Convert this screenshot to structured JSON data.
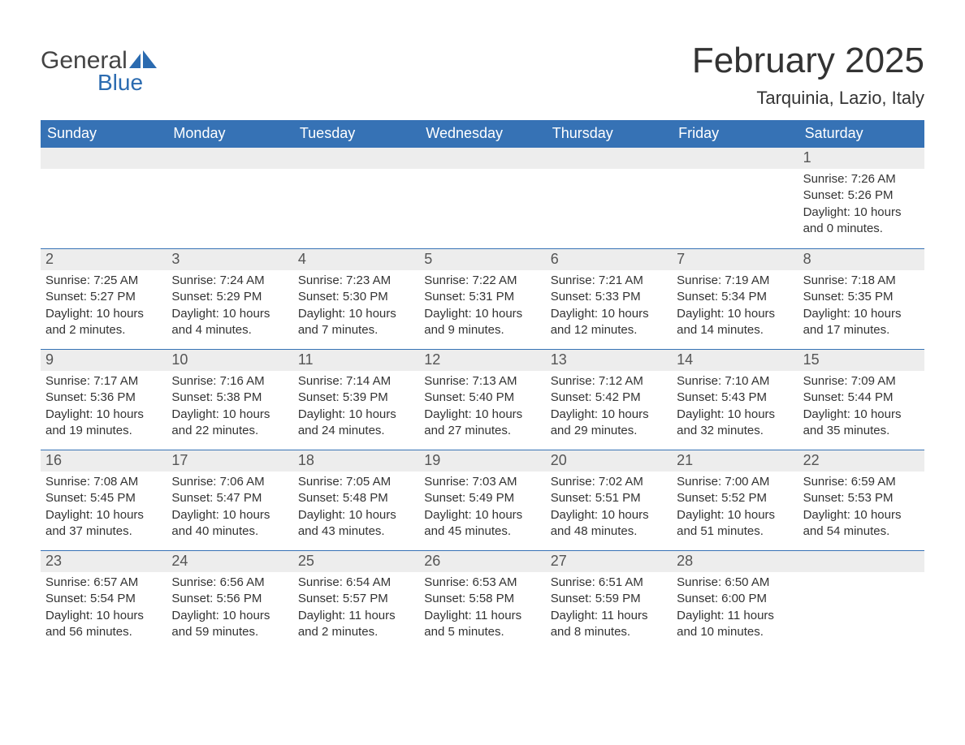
{
  "brand": {
    "word1": "General",
    "word2": "Blue"
  },
  "title": {
    "month": "February 2025",
    "location": "Tarquinia, Lazio, Italy"
  },
  "colors": {
    "header_bg": "#3672b5",
    "header_text": "#ffffff",
    "daynum_bg": "#ededed",
    "rule": "#3672b5",
    "text": "#333333",
    "logo_blue": "#2b6bb0"
  },
  "days_of_week": [
    "Sunday",
    "Monday",
    "Tuesday",
    "Wednesday",
    "Thursday",
    "Friday",
    "Saturday"
  ],
  "weeks": [
    [
      {
        "n": "",
        "sunrise": "",
        "sunset": "",
        "daylight": ""
      },
      {
        "n": "",
        "sunrise": "",
        "sunset": "",
        "daylight": ""
      },
      {
        "n": "",
        "sunrise": "",
        "sunset": "",
        "daylight": ""
      },
      {
        "n": "",
        "sunrise": "",
        "sunset": "",
        "daylight": ""
      },
      {
        "n": "",
        "sunrise": "",
        "sunset": "",
        "daylight": ""
      },
      {
        "n": "",
        "sunrise": "",
        "sunset": "",
        "daylight": ""
      },
      {
        "n": "1",
        "sunrise": "Sunrise: 7:26 AM",
        "sunset": "Sunset: 5:26 PM",
        "daylight": "Daylight: 10 hours and 0 minutes."
      }
    ],
    [
      {
        "n": "2",
        "sunrise": "Sunrise: 7:25 AM",
        "sunset": "Sunset: 5:27 PM",
        "daylight": "Daylight: 10 hours and 2 minutes."
      },
      {
        "n": "3",
        "sunrise": "Sunrise: 7:24 AM",
        "sunset": "Sunset: 5:29 PM",
        "daylight": "Daylight: 10 hours and 4 minutes."
      },
      {
        "n": "4",
        "sunrise": "Sunrise: 7:23 AM",
        "sunset": "Sunset: 5:30 PM",
        "daylight": "Daylight: 10 hours and 7 minutes."
      },
      {
        "n": "5",
        "sunrise": "Sunrise: 7:22 AM",
        "sunset": "Sunset: 5:31 PM",
        "daylight": "Daylight: 10 hours and 9 minutes."
      },
      {
        "n": "6",
        "sunrise": "Sunrise: 7:21 AM",
        "sunset": "Sunset: 5:33 PM",
        "daylight": "Daylight: 10 hours and 12 minutes."
      },
      {
        "n": "7",
        "sunrise": "Sunrise: 7:19 AM",
        "sunset": "Sunset: 5:34 PM",
        "daylight": "Daylight: 10 hours and 14 minutes."
      },
      {
        "n": "8",
        "sunrise": "Sunrise: 7:18 AM",
        "sunset": "Sunset: 5:35 PM",
        "daylight": "Daylight: 10 hours and 17 minutes."
      }
    ],
    [
      {
        "n": "9",
        "sunrise": "Sunrise: 7:17 AM",
        "sunset": "Sunset: 5:36 PM",
        "daylight": "Daylight: 10 hours and 19 minutes."
      },
      {
        "n": "10",
        "sunrise": "Sunrise: 7:16 AM",
        "sunset": "Sunset: 5:38 PM",
        "daylight": "Daylight: 10 hours and 22 minutes."
      },
      {
        "n": "11",
        "sunrise": "Sunrise: 7:14 AM",
        "sunset": "Sunset: 5:39 PM",
        "daylight": "Daylight: 10 hours and 24 minutes."
      },
      {
        "n": "12",
        "sunrise": "Sunrise: 7:13 AM",
        "sunset": "Sunset: 5:40 PM",
        "daylight": "Daylight: 10 hours and 27 minutes."
      },
      {
        "n": "13",
        "sunrise": "Sunrise: 7:12 AM",
        "sunset": "Sunset: 5:42 PM",
        "daylight": "Daylight: 10 hours and 29 minutes."
      },
      {
        "n": "14",
        "sunrise": "Sunrise: 7:10 AM",
        "sunset": "Sunset: 5:43 PM",
        "daylight": "Daylight: 10 hours and 32 minutes."
      },
      {
        "n": "15",
        "sunrise": "Sunrise: 7:09 AM",
        "sunset": "Sunset: 5:44 PM",
        "daylight": "Daylight: 10 hours and 35 minutes."
      }
    ],
    [
      {
        "n": "16",
        "sunrise": "Sunrise: 7:08 AM",
        "sunset": "Sunset: 5:45 PM",
        "daylight": "Daylight: 10 hours and 37 minutes."
      },
      {
        "n": "17",
        "sunrise": "Sunrise: 7:06 AM",
        "sunset": "Sunset: 5:47 PM",
        "daylight": "Daylight: 10 hours and 40 minutes."
      },
      {
        "n": "18",
        "sunrise": "Sunrise: 7:05 AM",
        "sunset": "Sunset: 5:48 PM",
        "daylight": "Daylight: 10 hours and 43 minutes."
      },
      {
        "n": "19",
        "sunrise": "Sunrise: 7:03 AM",
        "sunset": "Sunset: 5:49 PM",
        "daylight": "Daylight: 10 hours and 45 minutes."
      },
      {
        "n": "20",
        "sunrise": "Sunrise: 7:02 AM",
        "sunset": "Sunset: 5:51 PM",
        "daylight": "Daylight: 10 hours and 48 minutes."
      },
      {
        "n": "21",
        "sunrise": "Sunrise: 7:00 AM",
        "sunset": "Sunset: 5:52 PM",
        "daylight": "Daylight: 10 hours and 51 minutes."
      },
      {
        "n": "22",
        "sunrise": "Sunrise: 6:59 AM",
        "sunset": "Sunset: 5:53 PM",
        "daylight": "Daylight: 10 hours and 54 minutes."
      }
    ],
    [
      {
        "n": "23",
        "sunrise": "Sunrise: 6:57 AM",
        "sunset": "Sunset: 5:54 PM",
        "daylight": "Daylight: 10 hours and 56 minutes."
      },
      {
        "n": "24",
        "sunrise": "Sunrise: 6:56 AM",
        "sunset": "Sunset: 5:56 PM",
        "daylight": "Daylight: 10 hours and 59 minutes."
      },
      {
        "n": "25",
        "sunrise": "Sunrise: 6:54 AM",
        "sunset": "Sunset: 5:57 PM",
        "daylight": "Daylight: 11 hours and 2 minutes."
      },
      {
        "n": "26",
        "sunrise": "Sunrise: 6:53 AM",
        "sunset": "Sunset: 5:58 PM",
        "daylight": "Daylight: 11 hours and 5 minutes."
      },
      {
        "n": "27",
        "sunrise": "Sunrise: 6:51 AM",
        "sunset": "Sunset: 5:59 PM",
        "daylight": "Daylight: 11 hours and 8 minutes."
      },
      {
        "n": "28",
        "sunrise": "Sunrise: 6:50 AM",
        "sunset": "Sunset: 6:00 PM",
        "daylight": "Daylight: 11 hours and 10 minutes."
      },
      {
        "n": "",
        "sunrise": "",
        "sunset": "",
        "daylight": ""
      }
    ]
  ]
}
